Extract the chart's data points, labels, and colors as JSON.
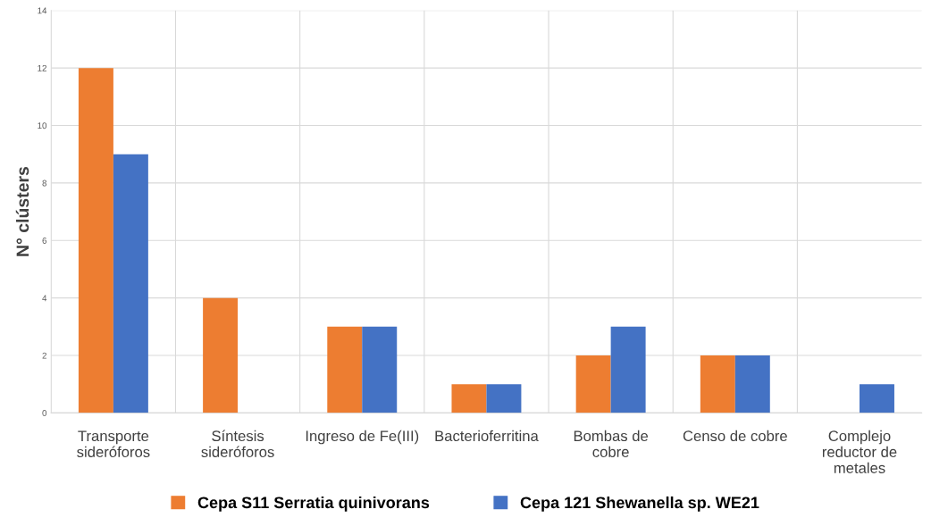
{
  "chart_data": {
    "type": "bar",
    "ylabel": "N° clústers",
    "categories": [
      "Transporte\nsideróforos",
      "Síntesis\nsideróforos",
      "Ingreso de Fe(III)",
      "Bacterioferritina",
      "Bombas de\ncobre",
      "Censo de cobre",
      "Complejo\nreductor de\nmetales"
    ],
    "series": [
      {
        "name": "Cepa S11 Serratia quinivorans",
        "color": "#ed7d31",
        "values": [
          12,
          4,
          3,
          1,
          2,
          2,
          0
        ]
      },
      {
        "name": "Cepa 121 Shewanella sp. WE21",
        "color": "#4472c4",
        "values": [
          9,
          0,
          3,
          1,
          3,
          2,
          1
        ]
      }
    ],
    "ylim": [
      0,
      14
    ],
    "yticks": [
      0,
      2,
      4,
      6,
      8,
      10,
      12,
      14
    ],
    "grid": true,
    "legend": "bottom"
  }
}
